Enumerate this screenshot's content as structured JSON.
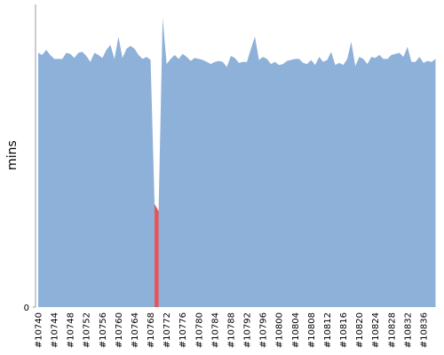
{
  "chart_data": {
    "type": "area",
    "y_label": "mins",
    "categories": [
      "#10740",
      null,
      null,
      null,
      "#10744",
      null,
      null,
      null,
      "#10748",
      null,
      null,
      null,
      "#10752",
      null,
      null,
      null,
      "#10756",
      null,
      null,
      null,
      "#10760",
      null,
      null,
      null,
      "#10764",
      null,
      null,
      null,
      "#10768",
      null,
      null,
      null,
      "#10772",
      null,
      null,
      null,
      "#10776",
      null,
      null,
      null,
      "#10780",
      null,
      null,
      null,
      "#10784",
      null,
      null,
      null,
      "#10788",
      null,
      null,
      null,
      "#10792",
      null,
      null,
      null,
      "#10796",
      null,
      null,
      null,
      "#10800",
      null,
      null,
      null,
      "#10804",
      null,
      null,
      null,
      "#10808",
      null,
      null,
      null,
      "#10812",
      null,
      null,
      null,
      "#10816",
      null,
      null,
      null,
      "#10820",
      null,
      null,
      null,
      "#10824",
      null,
      null,
      null,
      "#10828",
      null,
      null,
      null,
      "#10832",
      null,
      null,
      null,
      "#10836",
      null,
      null,
      null
    ],
    "series": [
      {
        "color": "#8eb1da",
        "values": [
          25.2,
          25.0,
          25.5,
          25.0,
          24.6,
          24.6,
          24.6,
          25.2,
          25.1,
          24.7,
          25.2,
          25.3,
          24.9,
          24.3,
          25.2,
          25.0,
          24.7,
          25.5,
          26.0,
          24.6,
          26.8,
          24.7,
          25.6,
          25.9,
          25.6,
          25.0,
          24.6,
          24.8,
          24.5,
          10.2,
          9.5,
          28.7,
          24.1,
          24.6,
          25.0,
          24.6,
          25.1,
          24.8,
          24.4,
          24.7,
          24.6,
          24.5,
          24.3,
          24.1,
          24.3,
          24.4,
          24.3,
          23.8,
          24.9,
          24.7,
          24.2,
          24.3,
          24.3,
          25.6,
          26.8,
          24.5,
          24.8,
          24.6,
          24.1,
          24.3,
          24.0,
          24.1,
          24.4,
          24.5,
          24.6,
          24.6,
          24.2,
          24.1,
          24.5,
          24.0,
          24.8,
          24.3,
          24.5,
          25.3,
          24.0,
          24.2,
          24.0,
          24.6,
          26.3,
          23.9,
          24.8,
          24.6,
          24.1,
          24.8,
          24.7,
          25.0,
          24.6,
          24.6,
          25.0,
          25.1,
          25.2,
          24.8,
          25.8,
          24.3,
          24.3,
          24.8,
          24.2,
          24.4,
          24.3,
          24.6
        ]
      },
      {
        "color": "#e85555",
        "values": [
          null,
          null,
          null,
          null,
          null,
          null,
          null,
          null,
          null,
          null,
          null,
          null,
          null,
          null,
          null,
          null,
          null,
          null,
          null,
          null,
          null,
          null,
          null,
          null,
          null,
          null,
          null,
          null,
          null,
          10.2,
          9.5,
          null,
          null,
          null,
          null,
          null,
          null,
          null,
          null,
          null,
          null,
          null,
          null,
          null,
          null,
          null,
          null,
          null,
          null,
          null,
          null,
          null,
          null,
          null,
          null,
          null,
          null,
          null,
          null,
          null,
          null,
          null,
          null,
          null,
          null,
          null,
          null,
          null,
          null,
          null,
          null,
          null,
          null,
          null,
          null,
          null,
          null,
          null,
          null,
          null,
          null,
          null,
          null,
          null,
          null,
          null,
          null,
          null,
          null,
          null,
          null,
          null,
          null,
          null,
          null,
          null,
          null,
          null,
          null,
          null
        ]
      }
    ],
    "ylim": [
      0,
      30
    ],
    "yticks": [
      0
    ]
  }
}
